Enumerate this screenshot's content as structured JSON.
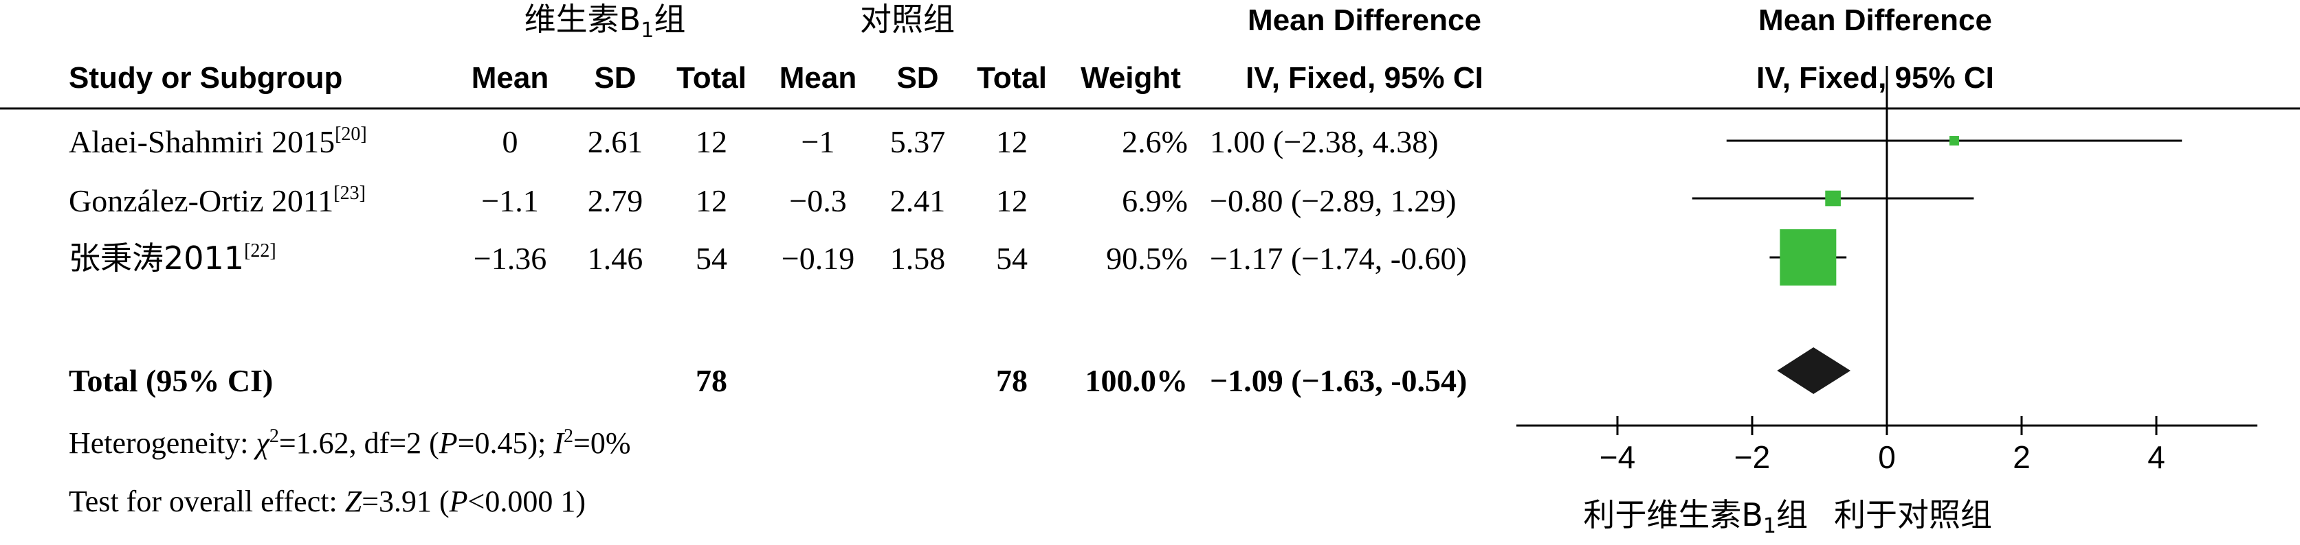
{
  "chart_data": {
    "type": "forest",
    "group_headers": {
      "experimental_prefix": "维生素B",
      "experimental_sub": "1",
      "experimental_suffix": "组",
      "control": "对照组",
      "effect_column": "Mean Difference",
      "plot_column": "Mean Difference"
    },
    "column_headers": {
      "study": "Study or Subgroup",
      "mean_e": "Mean",
      "sd_e": "SD",
      "total_e": "Total",
      "mean_c": "Mean",
      "sd_c": "SD",
      "total_c": "Total",
      "weight": "Weight",
      "ci": "IV, Fixed, 95% CI",
      "plot_ci": "IV, Fixed, 95% CI"
    },
    "studies": [
      {
        "name": "Alaei-Shahmiri 2015",
        "ref": "[20]",
        "mean_e": "0",
        "sd_e": "2.61",
        "total_e": "12",
        "mean_c": "−1",
        "sd_c": "5.37",
        "total_c": "12",
        "weight": "2.6%",
        "ci_text": "1.00 (−2.38, 4.38)",
        "md": 1.0,
        "lower": -2.38,
        "upper": 4.38,
        "weight_value": 2.6
      },
      {
        "name": "González-Ortiz 2011",
        "ref": "[23]",
        "mean_e": "−1.1",
        "sd_e": "2.79",
        "total_e": "12",
        "mean_c": "−0.3",
        "sd_c": "2.41",
        "total_c": "12",
        "weight": "6.9%",
        "ci_text": "−0.80 (−2.89, 1.29)",
        "md": -0.8,
        "lower": -2.89,
        "upper": 1.29,
        "weight_value": 6.9
      },
      {
        "name": "张秉涛2011",
        "ref": "[22]",
        "mean_e": "−1.36",
        "sd_e": "1.46",
        "total_e": "54",
        "mean_c": "−0.19",
        "sd_c": "1.58",
        "total_c": "54",
        "weight": "90.5%",
        "ci_text": "−1.17 (−1.74, -0.60)",
        "md": -1.17,
        "lower": -1.74,
        "upper": -0.6,
        "weight_value": 90.5
      }
    ],
    "total": {
      "label": "Total (95% CI)",
      "total_e": "78",
      "total_c": "78",
      "weight": "100.0%",
      "ci_text": "−1.09 (−1.63, -0.54)",
      "md": -1.09,
      "lower": -1.63,
      "upper": -0.54
    },
    "heterogeneity": {
      "prefix": "Heterogeneity: ",
      "chi_symbol": "χ",
      "chi_sup": "2",
      "rest1": "=1.62, df=2 (",
      "p_letter": "P",
      "rest2": "=0.45); ",
      "i_letter": "I",
      "i_sup": "2",
      "rest3": "=0%"
    },
    "overall": {
      "prefix": "Test for overall effect: ",
      "z_letter": "Z",
      "rest1": "=3.91 (",
      "p_letter": "P",
      "rest2": "<0.000 1)"
    },
    "axis": {
      "xlim": [
        -5.5,
        5.5
      ],
      "ticks": [
        -4,
        -2,
        0,
        2,
        4
      ],
      "tick_labels": [
        "−4",
        "−2",
        "0",
        "2",
        "4"
      ]
    },
    "favours": {
      "left_prefix": "利于维生素B",
      "left_sub": "1",
      "left_suffix": "组",
      "right": "利于对照组"
    },
    "colors": {
      "square": "#3dbb3d",
      "diamond": "#1a1a1a",
      "line": "#000000"
    }
  }
}
